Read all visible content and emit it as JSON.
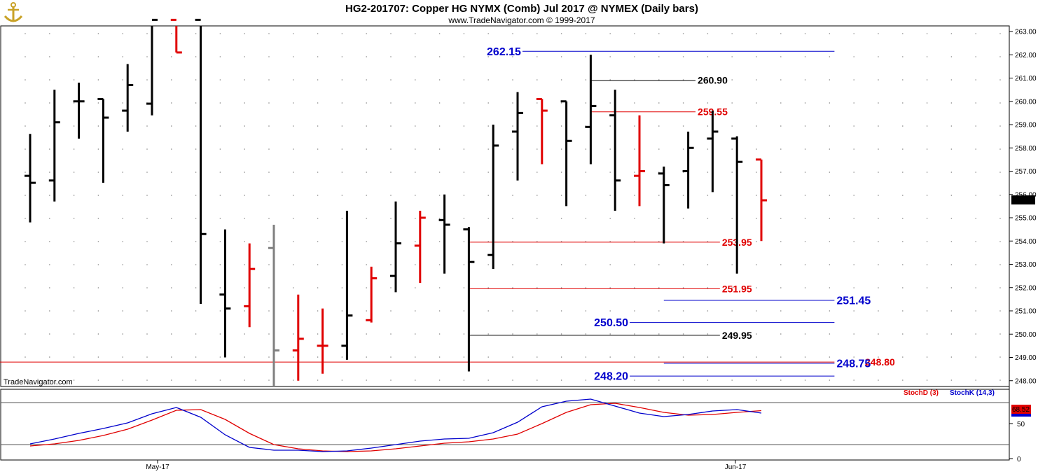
{
  "header": {
    "title": "HG2-201707:  Copper HG NYMX (Comb) Jul 2017 @ NYMEX  (Daily bars)",
    "copyright": "www.TradeNavigator.com © 1999-2017",
    "watermark": "TradeNavigator.com",
    "logo": "anchor-logo-icon"
  },
  "colors": {
    "up": "#000000",
    "down": "#e00000",
    "neutral": "#808080",
    "blue_level": "#0000cc",
    "red_level": "#e00000",
    "black_level": "#000000",
    "stochD": "#e00000",
    "stochK": "#0000cc",
    "last_price_badge": "#000000",
    "stoch_badge": "#e00000",
    "highlight": "#33ff33"
  },
  "chart_data": [
    {
      "type": "ohlc",
      "ylim": [
        247.8,
        263.2
      ],
      "yticks": [
        "248.00",
        "249.00",
        "250.00",
        "251.00",
        "252.00",
        "253.00",
        "254.00",
        "255.00",
        "256.00",
        "257.00",
        "258.00",
        "259.00",
        "260.00",
        "261.00",
        "262.00",
        "263.00"
      ],
      "xtick_labels": [
        "May-17",
        "Jun-17"
      ],
      "last_price": "255.75",
      "bars": [
        {
          "o": 256.8,
          "h": 258.6,
          "l": 254.8,
          "c": 256.5,
          "color": "up"
        },
        {
          "o": 256.6,
          "h": 260.5,
          "l": 255.7,
          "c": 259.1,
          "color": "up"
        },
        {
          "o": 260.0,
          "h": 260.8,
          "l": 258.4,
          "c": 260.0,
          "color": "up"
        },
        {
          "o": 260.1,
          "h": 260.1,
          "l": 256.5,
          "c": 259.3,
          "color": "up"
        },
        {
          "o": 259.6,
          "h": 261.6,
          "l": 258.7,
          "c": 260.7,
          "color": "up"
        },
        {
          "o": 259.9,
          "h": 263.5,
          "l": 259.4,
          "c": 263.5,
          "color": "up"
        },
        {
          "o": 263.5,
          "h": 263.5,
          "l": 262.1,
          "c": 262.1,
          "color": "down"
        },
        {
          "o": 263.5,
          "h": 263.5,
          "l": 251.3,
          "c": 254.3,
          "color": "up"
        },
        {
          "o": 251.7,
          "h": 254.5,
          "l": 249.0,
          "c": 251.1,
          "color": "up"
        },
        {
          "o": 251.2,
          "h": 253.9,
          "l": 250.3,
          "c": 252.8,
          "color": "down"
        },
        {
          "o": 253.7,
          "h": 254.7,
          "l": 247.7,
          "c": 249.3,
          "color": "neutral"
        },
        {
          "o": 249.3,
          "h": 251.7,
          "l": 248.0,
          "c": 249.8,
          "color": "down"
        },
        {
          "o": 249.5,
          "h": 251.1,
          "l": 248.3,
          "c": 249.5,
          "color": "down"
        },
        {
          "o": 249.5,
          "h": 255.3,
          "l": 248.9,
          "c": 250.8,
          "color": "up"
        },
        {
          "o": 250.6,
          "h": 252.9,
          "l": 250.5,
          "c": 252.4,
          "color": "down"
        },
        {
          "o": 252.5,
          "h": 255.7,
          "l": 251.8,
          "c": 253.9,
          "color": "up"
        },
        {
          "o": 253.8,
          "h": 255.3,
          "l": 252.2,
          "c": 255.0,
          "color": "down"
        },
        {
          "o": 254.9,
          "h": 256.0,
          "l": 252.6,
          "c": 254.7,
          "color": "up"
        },
        {
          "o": 254.5,
          "h": 254.6,
          "l": 248.4,
          "c": 253.1,
          "color": "up"
        },
        {
          "o": 253.4,
          "h": 259.0,
          "l": 252.8,
          "c": 258.1,
          "color": "up"
        },
        {
          "o": 258.7,
          "h": 260.4,
          "l": 256.6,
          "c": 259.5,
          "color": "up"
        },
        {
          "o": 260.1,
          "h": 260.1,
          "l": 257.3,
          "c": 259.6,
          "color": "down"
        },
        {
          "o": 260.0,
          "h": 260.0,
          "l": 255.5,
          "c": 258.3,
          "color": "up"
        },
        {
          "o": 258.9,
          "h": 262.0,
          "l": 257.3,
          "c": 259.8,
          "color": "up"
        },
        {
          "o": 259.4,
          "h": 260.5,
          "l": 255.3,
          "c": 256.6,
          "color": "up"
        },
        {
          "o": 256.8,
          "h": 259.4,
          "l": 255.5,
          "c": 257.0,
          "color": "down"
        },
        {
          "o": 256.9,
          "h": 257.2,
          "l": 253.9,
          "c": 256.4,
          "color": "up"
        },
        {
          "o": 257.0,
          "h": 258.7,
          "l": 255.4,
          "c": 258.0,
          "color": "up"
        },
        {
          "o": 258.4,
          "h": 259.6,
          "l": 256.1,
          "c": 258.7,
          "color": "up"
        },
        {
          "o": 258.4,
          "h": 258.5,
          "l": 252.6,
          "c": 257.4,
          "color": "up"
        },
        {
          "o": 257.5,
          "h": 257.5,
          "l": 254.0,
          "c": 255.75,
          "color": "down"
        }
      ],
      "levels": [
        {
          "label": "262.15",
          "value": 262.15,
          "color": "blue_level",
          "x_start_bar": 20.2,
          "x_end_bar": 33.0,
          "label_side": "left",
          "size": "big"
        },
        {
          "label": "260.90",
          "value": 260.9,
          "color": "black_level",
          "x_start_bar": 23.0,
          "x_end_bar": 27.3,
          "label_side": "right",
          "size": "normal"
        },
        {
          "label": "259.55",
          "value": 259.55,
          "color": "red_level",
          "x_start_bar": 23.0,
          "x_end_bar": 27.3,
          "label_side": "right",
          "size": "normal"
        },
        {
          "label": "253.95",
          "value": 253.95,
          "color": "red_level",
          "x_start_bar": 18.0,
          "x_end_bar": 28.3,
          "label_side": "right",
          "size": "normal"
        },
        {
          "label": "251.95",
          "value": 251.95,
          "color": "red_level",
          "x_start_bar": 18.0,
          "x_end_bar": 28.3,
          "label_side": "right",
          "size": "normal"
        },
        {
          "label": "251.45",
          "value": 251.45,
          "color": "blue_level",
          "x_start_bar": 26.0,
          "x_end_bar": 33.0,
          "label_side": "right",
          "size": "big"
        },
        {
          "label": "250.50",
          "value": 250.5,
          "color": "blue_level",
          "x_start_bar": 24.6,
          "x_end_bar": 33.0,
          "label_side": "left",
          "size": "big"
        },
        {
          "label": "249.95",
          "value": 249.95,
          "color": "black_level",
          "x_start_bar": 18.0,
          "x_end_bar": 28.3,
          "label_side": "right",
          "size": "normal"
        },
        {
          "label": "248.80",
          "value": 248.8,
          "color": "red_level",
          "x_start_bar": -1.5,
          "x_end_bar": 33.0,
          "label_side": "inline",
          "size": "normal"
        },
        {
          "label": "248.75",
          "value": 248.75,
          "color": "blue_level",
          "x_start_bar": 26.0,
          "x_end_bar": 33.0,
          "label_side": "right",
          "size": "big"
        },
        {
          "label": "248.20",
          "value": 248.2,
          "color": "blue_level",
          "x_start_bar": 24.6,
          "x_end_bar": 33.0,
          "label_side": "left",
          "size": "big"
        }
      ]
    },
    {
      "type": "line",
      "ylim": [
        0,
        100
      ],
      "yticks": [
        "0",
        "50"
      ],
      "reference_lines": [
        80,
        20
      ],
      "legend": [
        "StochD (3)",
        "StochK (14,3)"
      ],
      "last_value": "68.52",
      "series": [
        {
          "name": "StochD (3)",
          "color": "stochD",
          "values": [
            18,
            21,
            26,
            33,
            42,
            55,
            69,
            70,
            56,
            36,
            20,
            14,
            11,
            10,
            11,
            14,
            18,
            22,
            24,
            28,
            35,
            50,
            66,
            77,
            79,
            73,
            66,
            62,
            63,
            66,
            68.52
          ]
        },
        {
          "name": "StochK (14,3)",
          "color": "stochK",
          "values": [
            21,
            28,
            36,
            43,
            51,
            64,
            73,
            59,
            34,
            16,
            12,
            12,
            10,
            11,
            15,
            20,
            25,
            28,
            29,
            37,
            52,
            74,
            82,
            85,
            75,
            65,
            60,
            63,
            68,
            70,
            65
          ]
        }
      ]
    }
  ],
  "stoch_legend": {
    "d": "StochD (3)",
    "k": "StochK (14,3)"
  }
}
